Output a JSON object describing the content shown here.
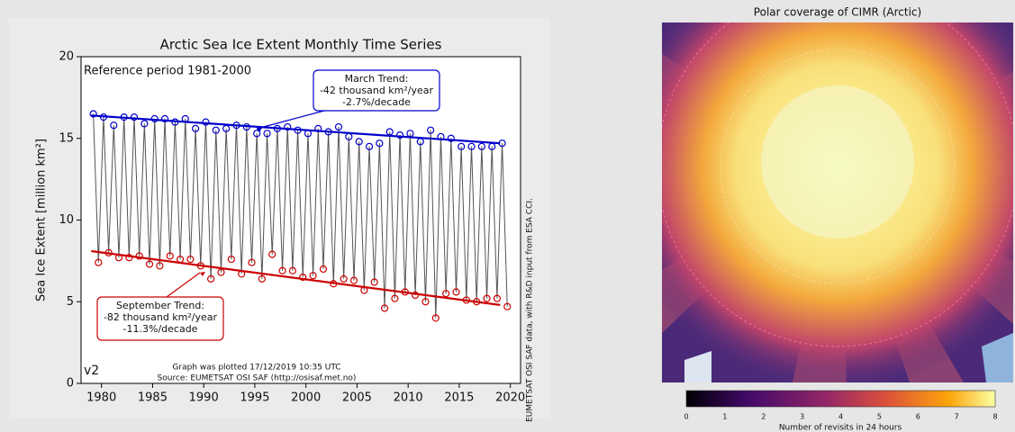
{
  "chart_data": {
    "type": "scatter",
    "title": "Arctic Sea Ice Extent Monthly Time Series",
    "ylabel": "Sea Ice Extent [million km²]",
    "xlim": [
      1978,
      2021
    ],
    "xticks": [
      1980,
      1985,
      1990,
      1995,
      2000,
      2005,
      2010,
      2015,
      2020
    ],
    "ylim": [
      0,
      20
    ],
    "yticks": [
      0,
      5,
      10,
      15,
      20
    ],
    "line_color": "#555555",
    "series": [
      {
        "color": "#0000cc",
        "x": [
          1979.2,
          1980.2,
          1981.2,
          1982.2,
          1983.2,
          1984.2,
          1985.2,
          1986.2,
          1987.2,
          1988.2,
          1989.2,
          1990.2,
          1991.2,
          1992.2,
          1993.2,
          1994.2,
          1995.2,
          1996.2,
          1997.2,
          1998.2,
          1999.2,
          2000.2,
          2001.2,
          2002.2,
          2003.2,
          2004.2,
          2005.2,
          2006.2,
          2007.2,
          2008.2,
          2009.2,
          2010.2,
          2011.2,
          2012.2,
          2013.2,
          2014.2,
          2015.2,
          2016.2,
          2017.2,
          2018.2,
          2019.2
        ],
        "values": [
          16.5,
          16.3,
          15.8,
          16.3,
          16.3,
          15.9,
          16.2,
          16.2,
          16.0,
          16.2,
          15.6,
          16.0,
          15.5,
          15.6,
          15.8,
          15.7,
          15.3,
          15.3,
          15.6,
          15.7,
          15.5,
          15.3,
          15.6,
          15.4,
          15.7,
          15.1,
          14.8,
          14.5,
          14.7,
          15.4,
          15.2,
          15.3,
          14.8,
          15.5,
          15.1,
          15.0,
          14.5,
          14.5,
          14.5,
          14.5,
          14.7
        ]
      },
      {
        "color": "#cc0000",
        "x": [
          1979.7,
          1980.7,
          1981.7,
          1982.7,
          1983.7,
          1984.7,
          1985.7,
          1986.7,
          1987.7,
          1988.7,
          1989.7,
          1990.7,
          1991.7,
          1992.7,
          1993.7,
          1994.7,
          1995.7,
          1996.7,
          1997.7,
          1998.7,
          1999.7,
          2000.7,
          2001.7,
          2002.7,
          2003.7,
          2004.7,
          2005.7,
          2006.7,
          2007.7,
          2008.7,
          2009.7,
          2010.7,
          2011.7,
          2012.7,
          2013.7,
          2014.7,
          2015.7,
          2016.7,
          2017.7,
          2018.7,
          2019.7
        ],
        "values": [
          7.4,
          8.0,
          7.7,
          7.7,
          7.8,
          7.3,
          7.2,
          7.8,
          7.6,
          7.6,
          7.2,
          6.4,
          6.8,
          7.6,
          6.7,
          7.4,
          6.4,
          7.9,
          6.9,
          6.9,
          6.5,
          6.6,
          7.0,
          6.1,
          6.4,
          6.3,
          5.7,
          6.2,
          4.6,
          5.2,
          5.6,
          5.4,
          5.0,
          4.0,
          5.5,
          5.6,
          5.1,
          5.0,
          5.2,
          5.2,
          4.7
        ]
      }
    ],
    "trends": [
      {
        "color": "#0000cc",
        "x": [
          1979,
          2019
        ],
        "values": [
          16.4,
          14.7
        ]
      },
      {
        "color": "#cc0000",
        "x": [
          1979,
          2019
        ],
        "values": [
          8.1,
          4.8
        ]
      }
    ],
    "annotations": {
      "reference": "Reference period 1981-2000",
      "march": [
        "March Trend:",
        "-42 thousand km²/year",
        "-2.7%/decade"
      ],
      "september": [
        "September Trend:",
        "-82 thousand km²/year",
        "-11.3%/decade"
      ],
      "version": "v2",
      "plotted": [
        "Graph was plotted 17/12/2019 10:35 UTC",
        "Source: EUMETSAT OSI SAF (http://osisaf.met.no)"
      ],
      "credit": "EUMETSAT OSI SAF data, with R&D input from ESA CCI."
    }
  },
  "map": {
    "title": "Polar coverage of CIMR (Arctic)",
    "colorbar": {
      "ticks": [
        0,
        1,
        2,
        3,
        4,
        5,
        6,
        7,
        8
      ],
      "label": "Number of revisits in 24 hours"
    }
  }
}
